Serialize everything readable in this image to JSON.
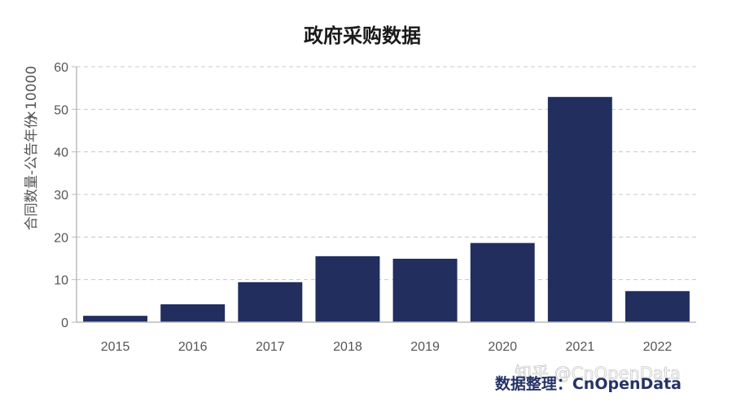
{
  "colors": {
    "bar": "#212e5e",
    "grid": "#c8c8c8",
    "axis": "#bbbbbb",
    "text": "#555555",
    "credit": "#253366"
  },
  "credit_text": "数据整理：CnOpenData",
  "watermark_text": "知乎 @CnOpenData",
  "chart_data": {
    "type": "bar",
    "title": "政府采购数据",
    "categories": [
      "2015",
      "2016",
      "2017",
      "2018",
      "2019",
      "2020",
      "2021",
      "2022"
    ],
    "values": [
      1.5,
      4.2,
      9.4,
      15.5,
      14.9,
      18.6,
      52.9,
      7.3
    ],
    "xlabel": "",
    "ylabel": "合同数量-公告年份",
    "y_multiplier": "×10000",
    "yticks": [
      "0",
      "10",
      "20",
      "30",
      "40",
      "50",
      "60"
    ],
    "ylim": [
      0,
      60
    ],
    "grid": true,
    "legend": "none"
  }
}
